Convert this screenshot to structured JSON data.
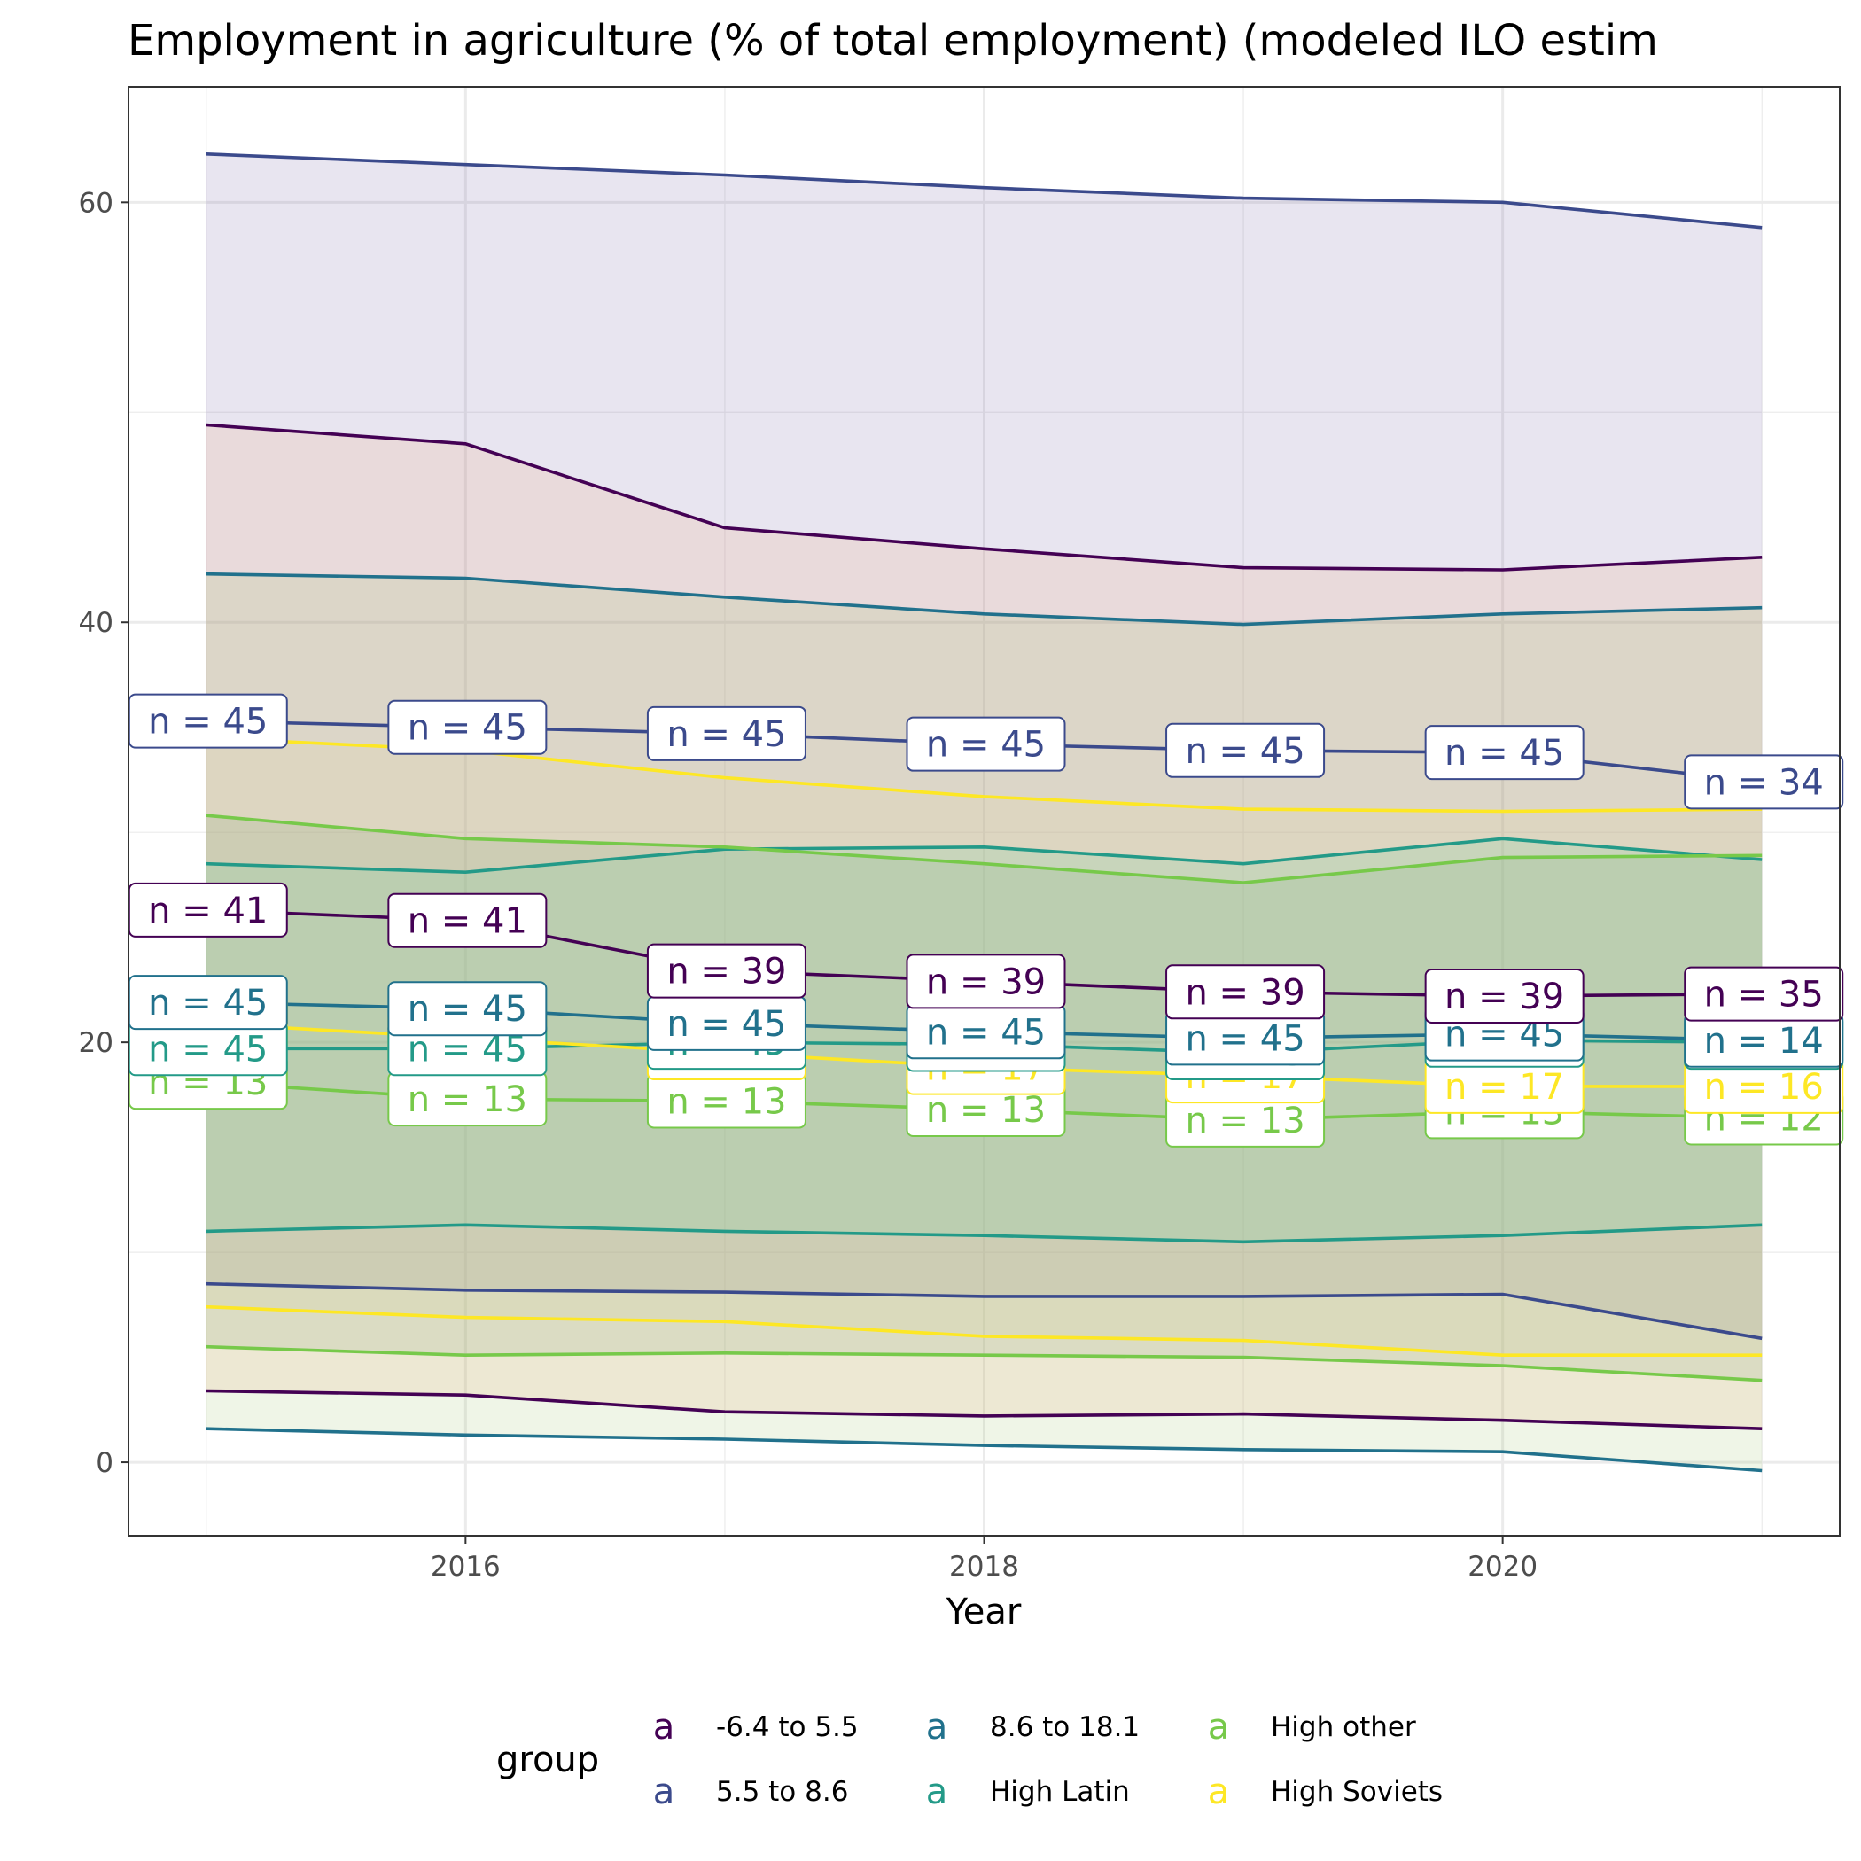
{
  "chart_data": {
    "type": "line",
    "title": "Employment in agriculture (% of total employment) (modeled ILO estim",
    "xlabel": "Year",
    "ylabel": "",
    "x": [
      2015,
      2016,
      2017,
      2018,
      2019,
      2020,
      2021
    ],
    "xticks": [
      "2016",
      "2018",
      "2020"
    ],
    "yticks": [
      "0",
      "20",
      "40",
      "60"
    ],
    "xlim": [
      2014.7,
      2021.3
    ],
    "ylim": [
      -3.5,
      65.5
    ],
    "grid": true,
    "legend": {
      "title": "group",
      "placement": "bottom",
      "key_glyph": "a"
    },
    "series": [
      {
        "name": "-6.4 to 5.5",
        "color": "#440154",
        "fill": "#f2a470",
        "upper": [
          49.4,
          48.5,
          44.5,
          43.5,
          42.6,
          42.5,
          43.1
        ],
        "mean": [
          26.3,
          25.8,
          23.4,
          22.9,
          22.4,
          22.2,
          22.3
        ],
        "lower": [
          3.4,
          3.2,
          2.4,
          2.2,
          2.3,
          2.0,
          1.6
        ],
        "n": [
          "n = 41",
          "n = 41",
          "n = 39",
          "n = 39",
          "n = 39",
          "n = 39",
          "n = 35"
        ]
      },
      {
        "name": "5.5 to 8.6",
        "color": "#3b4a8c",
        "fill": "#6e5fa0",
        "upper": [
          62.3,
          61.8,
          61.3,
          60.7,
          60.2,
          60.0,
          58.8
        ],
        "mean": [
          35.3,
          35.0,
          34.7,
          34.2,
          33.9,
          33.8,
          32.4
        ],
        "lower": [
          8.5,
          8.2,
          8.1,
          7.9,
          7.9,
          8.0,
          5.9
        ],
        "n": [
          "n = 45",
          "n = 45",
          "n = 45",
          "n = 45",
          "n = 45",
          "n = 45",
          "n = 34"
        ]
      },
      {
        "name": "8.6 to 18.1",
        "color": "#21718c",
        "fill": "#9dc36a",
        "upper": [
          42.3,
          42.1,
          41.2,
          40.4,
          39.9,
          40.4,
          40.7
        ],
        "mean": [
          21.9,
          21.6,
          20.9,
          20.5,
          20.2,
          20.4,
          20.1
        ],
        "lower": [
          1.6,
          1.3,
          1.1,
          0.8,
          0.6,
          0.5,
          -0.4
        ],
        "n": [
          "n = 45",
          "n = 45",
          "n = 45",
          "n = 45",
          "n = 45",
          "n = 45",
          "n = 14"
        ]
      },
      {
        "name": "High Latin",
        "color": "#239a88",
        "fill": "#5fd39a",
        "upper": [
          28.5,
          28.1,
          29.2,
          29.3,
          28.5,
          29.7,
          28.7
        ],
        "mean": [
          19.7,
          19.7,
          20.0,
          19.9,
          19.5,
          20.1,
          20.0
        ],
        "lower": [
          11.0,
          11.3,
          11.0,
          10.8,
          10.5,
          10.8,
          11.3
        ],
        "n": [
          "n = 45",
          "n = 45",
          "n = 45",
          "n = 15",
          "n = 15",
          "n = 15",
          "n = 14"
        ]
      },
      {
        "name": "High other",
        "color": "#77c94a",
        "fill": "#7ca272",
        "upper": [
          30.8,
          29.7,
          29.3,
          28.5,
          27.6,
          28.8,
          28.9
        ],
        "mean": [
          18.1,
          17.3,
          17.2,
          16.8,
          16.3,
          16.7,
          16.4
        ],
        "lower": [
          5.5,
          5.1,
          5.2,
          5.1,
          5.0,
          4.6,
          3.9
        ],
        "n": [
          "n = 13",
          "n = 13",
          "n = 13",
          "n = 13",
          "n = 13",
          "n = 13",
          "n = 12"
        ]
      },
      {
        "name": "High Soviets",
        "color": "#fde725",
        "fill": "#e8d9a0",
        "upper": [
          34.5,
          33.9,
          32.6,
          31.7,
          31.1,
          31.0,
          31.1
        ],
        "mean": [
          20.9,
          20.2,
          19.5,
          18.8,
          18.4,
          17.9,
          17.9
        ],
        "lower": [
          7.4,
          6.9,
          6.7,
          6.0,
          5.8,
          5.1,
          5.1
        ],
        "n": [
          "n = 17",
          "n = 17",
          "n = 17",
          "n = 17",
          "n = 17",
          "n = 17",
          "n = 16"
        ]
      }
    ],
    "bands": [
      {
        "from": "High Soviets",
        "to": "5.5 to 8.6",
        "fill": "#f7f4e3"
      },
      {
        "from": "-6.4 to 5.5",
        "to": "High Soviets",
        "fill": "#f5e7d6"
      },
      {
        "from": "8.6 to 18.1",
        "to": "High Soviets",
        "fill": "#dee2c6"
      },
      {
        "from": "High Soviets",
        "to": "High other",
        "fill": "#e0d8cb"
      },
      {
        "from": "High Latin",
        "to": "High Latin",
        "fill": "#c2cbd3"
      },
      {
        "from": "High Latin",
        "to": "5.5 to 8.6",
        "fill": "#d4cccc"
      },
      {
        "from": "5.5 to 8.6",
        "to": "High Soviets",
        "fill": "#dad5e3"
      },
      {
        "from": "High Soviets",
        "to": "High other",
        "fill": "#d5e4de"
      },
      {
        "from": "High other",
        "to": "-6.4 to 5.5",
        "fill": "#e3eadc"
      },
      {
        "from": "-6.4 to 5.5",
        "to": "8.6 to 18.1",
        "fill": "#e6f7ea"
      }
    ]
  }
}
